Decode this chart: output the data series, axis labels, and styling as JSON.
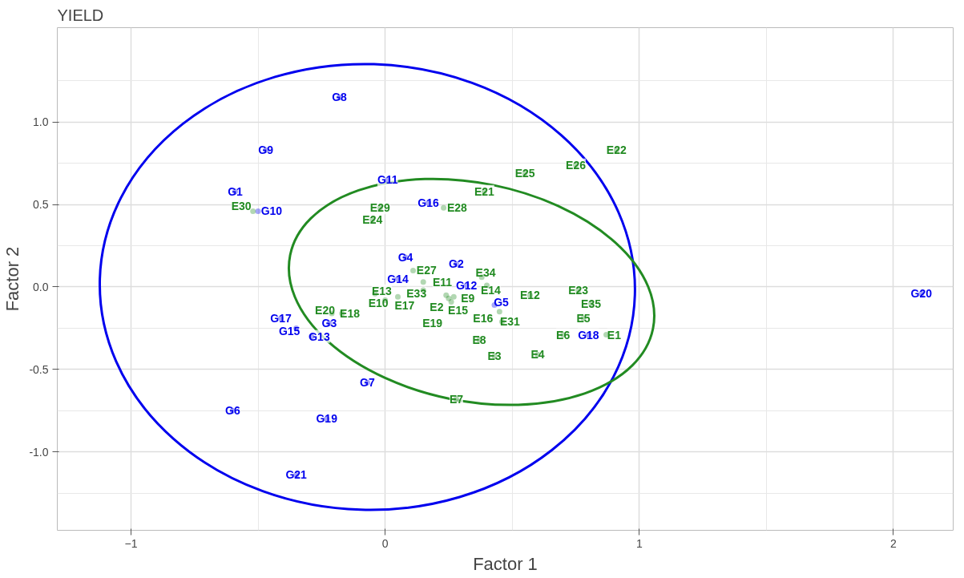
{
  "chart_data": {
    "type": "scatter",
    "title": "YIELD",
    "xlabel": "Factor 1",
    "ylabel": "Factor 2",
    "xlim": [
      -1.29,
      2.235
    ],
    "ylim": [
      -1.476,
      1.573
    ],
    "xticks": [
      -1,
      0,
      1,
      2
    ],
    "yticks": [
      {
        "value": -1.0,
        "label": "-1.0"
      },
      {
        "value": -0.5,
        "label": "-0.5"
      },
      {
        "value": 0.0,
        "label": "0.0"
      },
      {
        "value": 0.5,
        "label": "0.5"
      },
      {
        "value": 1.0,
        "label": "1.0"
      }
    ],
    "grid": true,
    "series": [
      {
        "color": "#0000ee",
        "marker": "circle",
        "x": [
          -0.18,
          -0.47,
          -0.59,
          -0.5,
          0.01,
          0.17,
          0.08,
          0.28,
          0.05,
          0.32,
          0.43,
          -0.41,
          -0.35,
          -0.29,
          -0.22,
          -0.07,
          -0.6,
          -0.23,
          -0.35,
          0.8,
          2.11
        ],
        "values": [
          1.15,
          0.83,
          0.58,
          0.46,
          0.65,
          0.51,
          0.18,
          0.14,
          0.05,
          0.01,
          -0.11,
          -0.19,
          -0.25,
          -0.3,
          -0.22,
          -0.58,
          -0.75,
          -0.8,
          -1.14,
          -0.29,
          -0.04
        ],
        "value_labels": [
          "G8",
          "G9",
          "G1",
          "G10",
          "G11",
          "G16",
          "G4",
          "G2",
          "G14",
          "G12",
          "G5",
          "G17",
          "G15",
          "G13",
          "G3",
          "G7",
          "G6",
          "G19",
          "G21",
          "G18",
          "G20"
        ]
      },
      {
        "color": "#228b22",
        "marker": "circle",
        "x": [
          -0.52,
          0.91,
          0.75,
          0.55,
          0.39,
          0.23,
          -0.02,
          -0.05,
          0.11,
          0.15,
          0.15,
          -0.04,
          0.0,
          0.05,
          0.38,
          0.4,
          0.24,
          0.25,
          0.26,
          0.27,
          -0.21,
          -0.17,
          0.45,
          0.7,
          0.57,
          0.76,
          0.81,
          0.78,
          0.87,
          0.46,
          0.37,
          0.43,
          0.6,
          0.28
        ],
        "values": [
          0.46,
          0.83,
          0.74,
          0.69,
          0.58,
          0.48,
          0.48,
          0.41,
          0.1,
          0.03,
          -0.02,
          -0.04,
          -0.08,
          -0.06,
          0.06,
          0.01,
          -0.05,
          -0.07,
          -0.09,
          -0.06,
          -0.16,
          -0.16,
          -0.15,
          -0.29,
          -0.05,
          -0.02,
          -0.1,
          -0.19,
          -0.29,
          -0.21,
          -0.32,
          -0.42,
          -0.41,
          -0.68
        ],
        "value_labels": [
          "E30",
          "E22",
          "E26",
          "E25",
          "E21",
          "E28",
          "E29",
          "E24",
          "E27",
          "E11",
          "E33",
          "E13",
          "E10",
          "E17",
          "E34",
          "E14",
          "E2",
          "E9",
          "E15",
          "E19",
          "E20",
          "E18",
          "E16",
          "E6",
          "E12",
          "E23",
          "E35",
          "E5",
          "E1",
          "E31",
          "E8",
          "E3",
          "E4",
          "E7"
        ]
      }
    ]
  }
}
